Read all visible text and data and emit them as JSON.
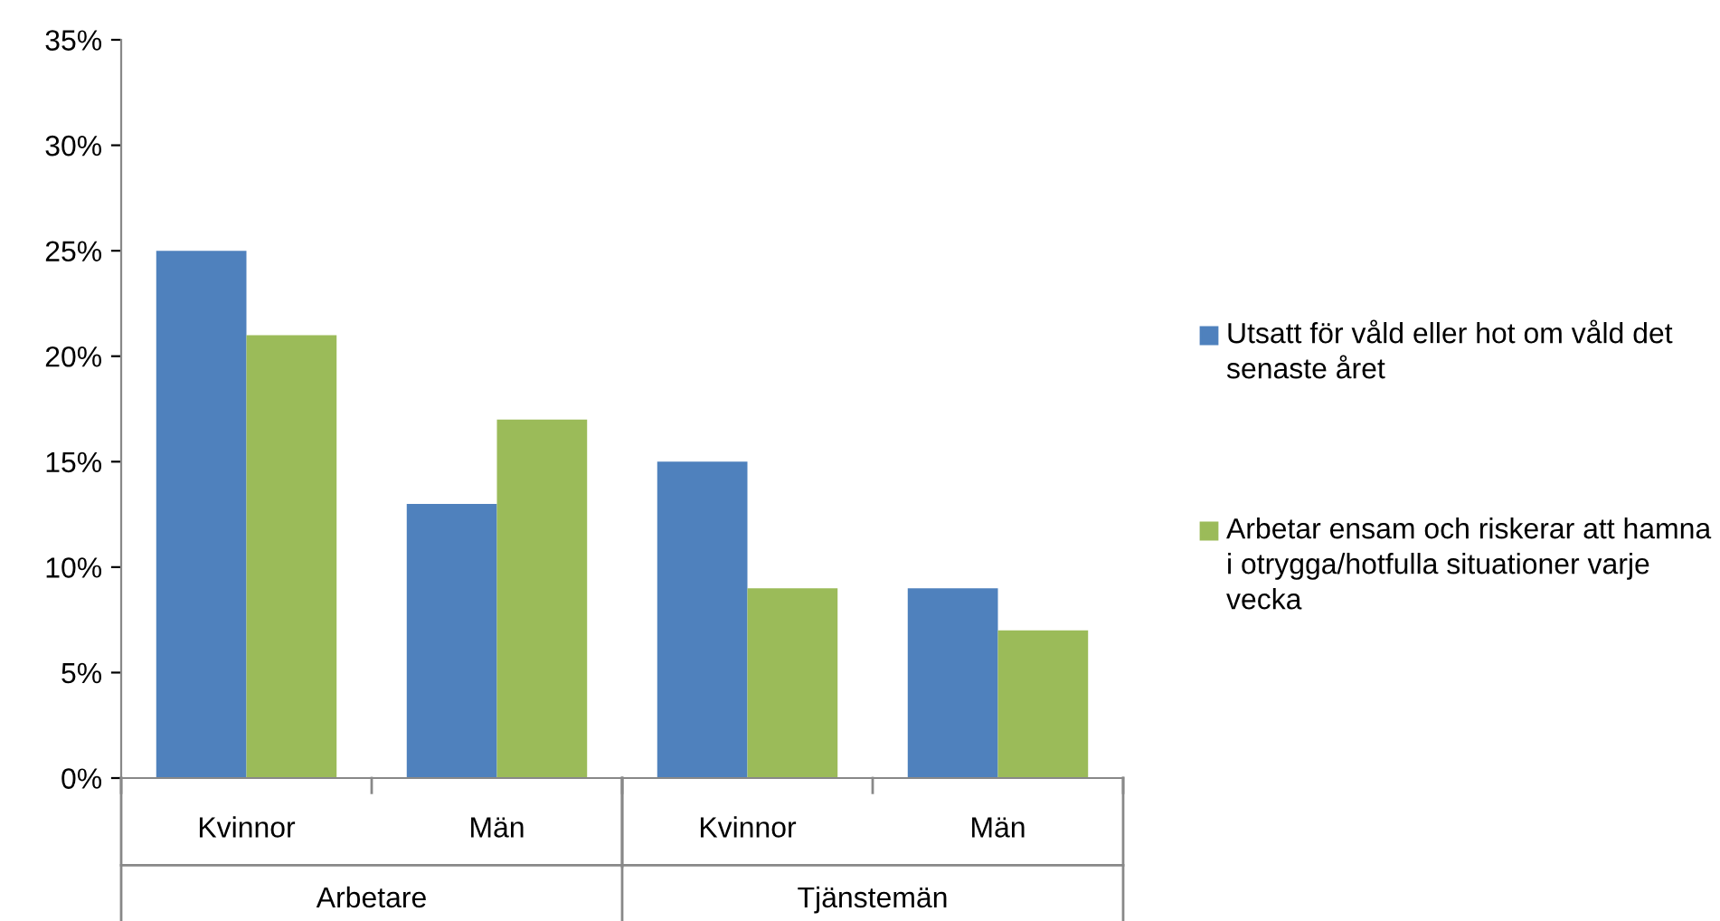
{
  "chart_data": {
    "type": "bar",
    "categories": [
      "Kvinnor",
      "Män",
      "Kvinnor",
      "Män"
    ],
    "series": [
      {
        "name": "Utsatt för våld eller hot om våld det senaste året",
        "color": "#4f81bd",
        "values": [
          25,
          13,
          15,
          9
        ]
      },
      {
        "name": "Arbetar ensam och riskerar att hamna i otrygga/hotfulla situationer varje vecka",
        "color": "#9bbb59",
        "values": [
          21,
          17,
          9,
          7
        ]
      }
    ],
    "annotations": [
      "Arbetare",
      "Tjänstemän"
    ],
    "ylim": [
      0,
      35
    ],
    "yticks": [
      {
        "value": 0,
        "label": "0%"
      },
      {
        "value": 5,
        "label": "5%"
      },
      {
        "value": 10,
        "label": "10%"
      },
      {
        "value": 15,
        "label": "15%"
      },
      {
        "value": 20,
        "label": "20%"
      },
      {
        "value": 25,
        "label": "25%"
      },
      {
        "value": 30,
        "label": "30%"
      },
      {
        "value": 35,
        "label": "35%"
      }
    ],
    "grid": false,
    "legend": "right"
  }
}
